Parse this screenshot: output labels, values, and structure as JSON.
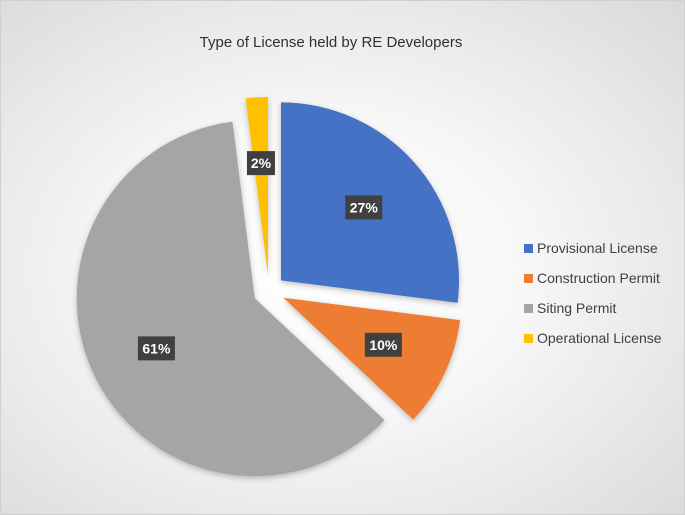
{
  "chart_data": {
    "type": "pie",
    "title": "Type of License held by RE Developers",
    "exploded": true,
    "legend_position": "right",
    "slices": [
      {
        "label": "Provisional License",
        "value": 27,
        "display": "27%",
        "color": "#4472C4"
      },
      {
        "label": "Construction Permit",
        "value": 10,
        "display": "10%",
        "color": "#ED7D31"
      },
      {
        "label": "Siting Permit",
        "value": 61,
        "display": "61%",
        "color": "#A5A5A5"
      },
      {
        "label": "Operational License",
        "value": 2,
        "display": "2%",
        "color": "#FFC000"
      }
    ]
  }
}
